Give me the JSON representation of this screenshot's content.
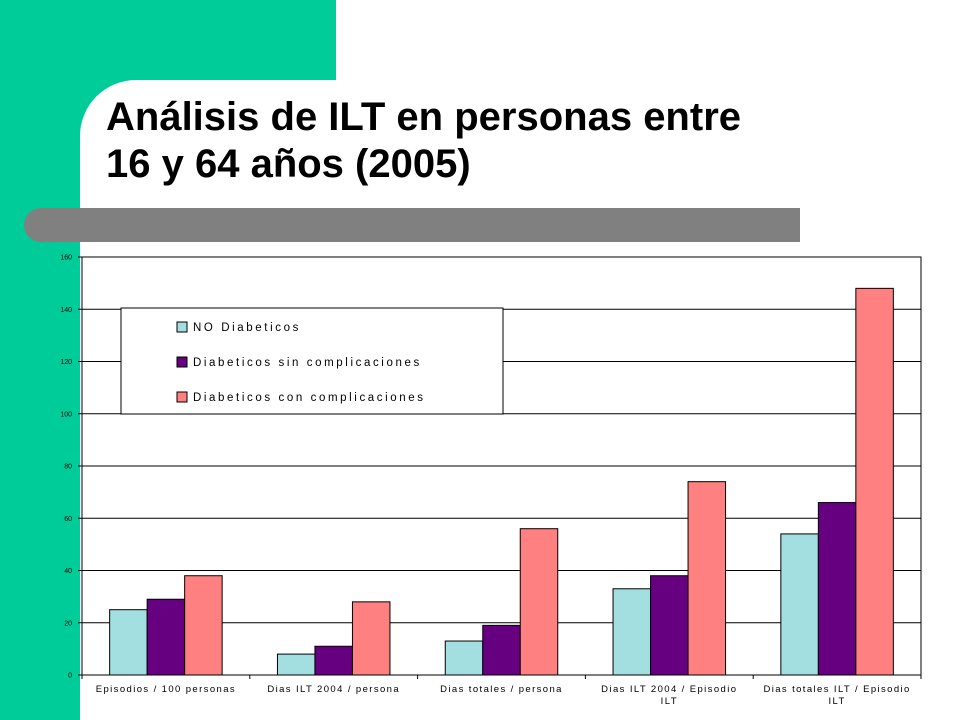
{
  "slide": {
    "title_line1": "Análisis de ILT en personas entre",
    "title_line2": "16 y 64 años (2005)",
    "colors": {
      "band": "#00cc99",
      "bar": "#808080"
    }
  },
  "chart_data": {
    "type": "bar",
    "title": "",
    "xlabel": "",
    "ylabel": "",
    "ylim": [
      0,
      160
    ],
    "yticks": [
      0,
      20,
      40,
      60,
      80,
      100,
      120,
      140,
      160
    ],
    "grid": true,
    "legend_position": "top-left",
    "categories": [
      [
        "Episodios / 100 personas"
      ],
      [
        "Dias ILT 2004 / persona"
      ],
      [
        "Dias totales / persona"
      ],
      [
        "Dias ILT 2004 / Episodio",
        "ILT"
      ],
      [
        "Dias totales ILT / Episodio",
        "ILT"
      ]
    ],
    "series": [
      {
        "name": "NO Diabeticos",
        "color": "#a3dfe0",
        "values": [
          25,
          8,
          13,
          33,
          54
        ]
      },
      {
        "name": "Diabeticos sin complicaciones",
        "color": "#660080",
        "values": [
          29,
          11,
          19,
          38,
          66
        ]
      },
      {
        "name": "Diabeticos con complicaciones",
        "color": "#ff8080",
        "values": [
          38,
          28,
          56,
          74,
          148
        ]
      }
    ]
  }
}
